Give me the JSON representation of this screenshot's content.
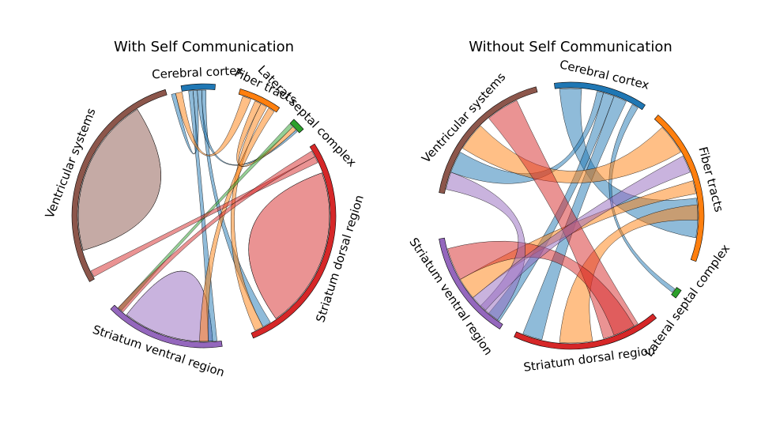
{
  "chart_data": [
    {
      "type": "chord",
      "title": "With Self Communication",
      "groups": [
        {
          "name": "Cerebral cortex",
          "color": "#1f77b4",
          "start_deg": 85,
          "end_deg": 100
        },
        {
          "name": "Fiber tracts",
          "color": "#ff7f0e",
          "start_deg": 55,
          "end_deg": 74
        },
        {
          "name": "Lateral septal complex",
          "color": "#2ca02c",
          "start_deg": 41,
          "end_deg": 47
        },
        {
          "name": "Striatum dorsal region",
          "color": "#d62728",
          "start_deg": -68,
          "end_deg": 33
        },
        {
          "name": "Striatum ventral region",
          "color": "#9467bd",
          "start_deg": -135,
          "end_deg": -82
        },
        {
          "name": "Ventricular systems",
          "color": "#8c564b",
          "start_deg": 107,
          "end_deg": 210
        }
      ],
      "ribbons": [
        {
          "from": "Ventricular systems",
          "to": "Ventricular systems",
          "a": [
            122,
            196
          ],
          "b": [
            122,
            196
          ]
        },
        {
          "from": "Striatum dorsal region",
          "to": "Striatum dorsal region",
          "a": [
            -55,
            20
          ],
          "b": [
            -55,
            20
          ]
        },
        {
          "from": "Striatum ventral region",
          "to": "Striatum ventral region",
          "a": [
            -128,
            -86
          ],
          "b": [
            -128,
            -86
          ]
        },
        {
          "from": "Cerebral cortex",
          "to": "Ventricular systems",
          "a": [
            93,
            95
          ],
          "b": [
            103,
            105
          ]
        },
        {
          "from": "Cerebral cortex",
          "to": "Striatum dorsal region",
          "a": [
            89,
            91
          ],
          "b": [
            -62,
            -58
          ]
        },
        {
          "from": "Cerebral cortex",
          "to": "Striatum ventral region",
          "a": [
            95,
            97
          ],
          "b": [
            -88,
            -84
          ]
        },
        {
          "from": "Cerebral cortex",
          "to": "Lateral septal complex",
          "a": [
            91,
            93
          ],
          "b": [
            42,
            43
          ]
        },
        {
          "from": "Fiber tracts",
          "to": "Ventricular systems",
          "a": [
            68,
            72
          ],
          "b": [
            100,
            103
          ]
        },
        {
          "from": "Fiber tracts",
          "to": "Striatum dorsal region",
          "a": [
            60,
            63
          ],
          "b": [
            -66,
            -62
          ]
        },
        {
          "from": "Fiber tracts",
          "to": "Striatum ventral region",
          "a": [
            56,
            59
          ],
          "b": [
            -92,
            -88
          ]
        },
        {
          "from": "Fiber tracts",
          "to": "Lateral septal complex",
          "a": [
            63,
            66
          ],
          "b": [
            43,
            45
          ]
        },
        {
          "from": "Lateral septal complex",
          "to": "Striatum ventral region",
          "a": [
            45,
            47
          ],
          "b": [
            -133,
            -131
          ]
        },
        {
          "from": "Striatum dorsal region",
          "to": "Ventricular systems",
          "a": [
            25,
            28
          ],
          "b": [
            206,
            209
          ]
        },
        {
          "from": "Striatum dorsal region",
          "to": "Striatum ventral region",
          "a": [
            28,
            31
          ],
          "b": [
            -133,
            -130
          ]
        }
      ]
    },
    {
      "type": "chord",
      "title": "Without Self Communication",
      "groups": [
        {
          "name": "Cerebral cortex",
          "color": "#1f77b4",
          "start_deg": 56,
          "end_deg": 97
        },
        {
          "name": "Fiber tracts",
          "color": "#ff7f0e",
          "start_deg": -20,
          "end_deg": 49
        },
        {
          "name": "Lateral septal complex",
          "color": "#2ca02c",
          "start_deg": -38,
          "end_deg": -34
        },
        {
          "name": "Striatum dorsal region",
          "color": "#d62728",
          "start_deg": -115,
          "end_deg": -50
        },
        {
          "name": "Striatum ventral region",
          "color": "#9467bd",
          "start_deg": -170,
          "end_deg": -122
        },
        {
          "name": "Ventricular systems",
          "color": "#8c564b",
          "start_deg": 105,
          "end_deg": 170
        }
      ],
      "ribbons": [
        {
          "from": "Cerebral cortex",
          "to": "Fiber tracts",
          "a": [
            85,
            95
          ],
          "b": [
            -10,
            8
          ]
        },
        {
          "from": "Cerebral cortex",
          "to": "Striatum dorsal region",
          "a": [
            64,
            70
          ],
          "b": [
            -112,
            -103
          ]
        },
        {
          "from": "Cerebral cortex",
          "to": "Striatum ventral region",
          "a": [
            70,
            75
          ],
          "b": [
            -130,
            -124
          ]
        },
        {
          "from": "Cerebral cortex",
          "to": "Ventricular systems",
          "a": [
            75,
            78
          ],
          "b": [
            150,
            160
          ]
        },
        {
          "from": "Cerebral cortex",
          "to": "Lateral septal complex",
          "a": [
            58,
            61
          ],
          "b": [
            -37,
            -35
          ]
        },
        {
          "from": "Fiber tracts",
          "to": "Ventricular systems",
          "a": [
            30,
            44
          ],
          "b": [
            135,
            148
          ]
        },
        {
          "from": "Fiber tracts",
          "to": "Striatum dorsal region",
          "a": [
            -2,
            5
          ],
          "b": [
            -95,
            -80
          ]
        },
        {
          "from": "Fiber tracts",
          "to": "Striatum ventral region",
          "a": [
            10,
            16
          ],
          "b": [
            -150,
            -140
          ]
        },
        {
          "from": "Striatum dorsal region",
          "to": "Ventricular systems",
          "a": [
            -75,
            -58
          ],
          "b": [
            115,
            130
          ]
        },
        {
          "from": "Striatum dorsal region",
          "to": "Striatum ventral region",
          "a": [
            -70,
            -60
          ],
          "b": [
            -165,
            -150
          ]
        },
        {
          "from": "Striatum ventral region",
          "to": "Ventricular systems",
          "a": [
            -135,
            -125
          ],
          "b": [
            160,
            168
          ]
        },
        {
          "from": "Striatum ventral region",
          "to": "Fiber tracts",
          "a": [
            -140,
            -132
          ],
          "b": [
            20,
            28
          ]
        }
      ]
    }
  ]
}
